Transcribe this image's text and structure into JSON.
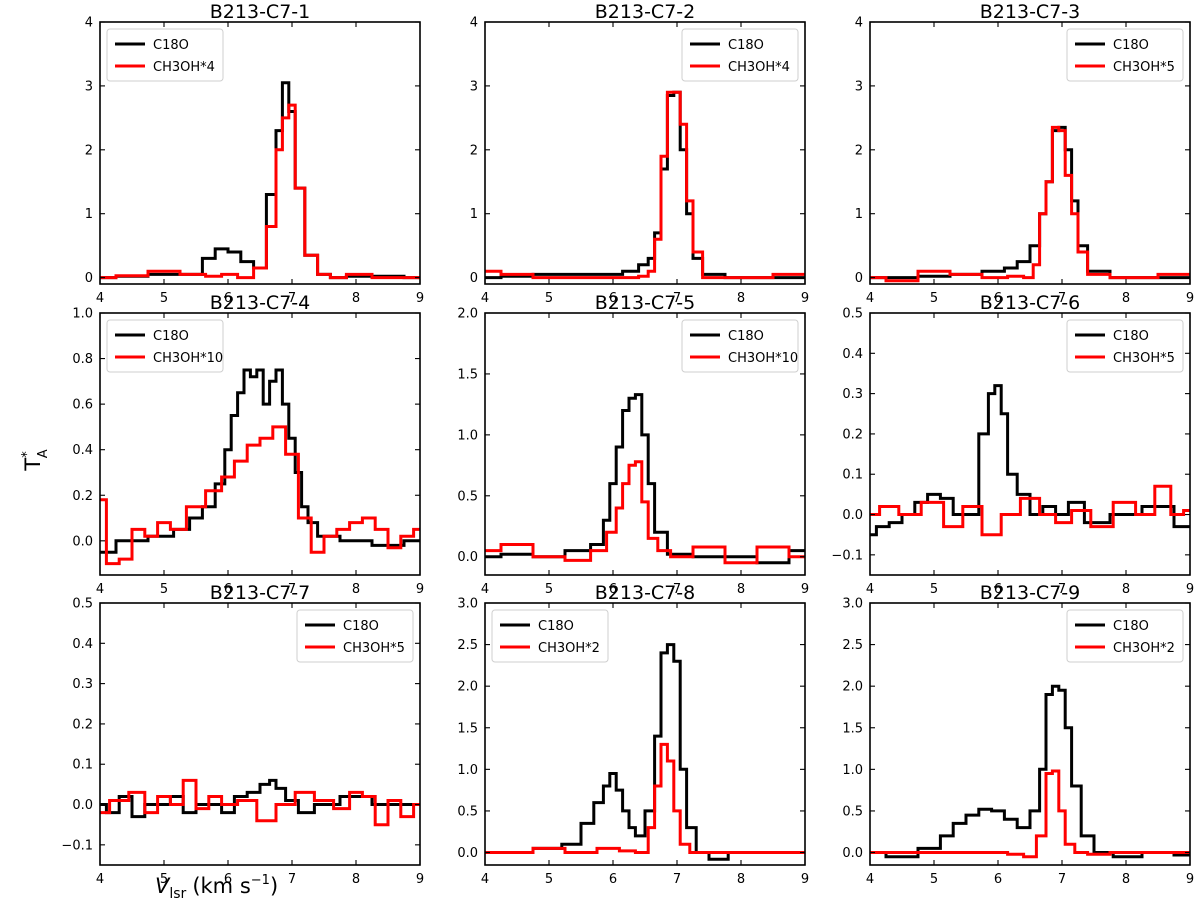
{
  "figure": {
    "ylabel_main": "T",
    "ylabel_super": "*",
    "ylabel_sub": "A",
    "xlabel_v": "V",
    "xlabel_sub": "lsr",
    "xlabel_units": "(km s",
    "xlabel_exp": "−1",
    "xlabel_close": ")"
  },
  "colors": {
    "c18o": "#000000",
    "ch3oh": "#ff0000"
  },
  "chart_data": [
    {
      "type": "line",
      "title": "B213-C7-1",
      "xlim": [
        4,
        9
      ],
      "ylim": [
        -0.1,
        4
      ],
      "yticks": [
        "0",
        "1",
        "2",
        "3",
        "4"
      ],
      "xticks": [
        "4",
        "5",
        "6",
        "7",
        "8",
        "9"
      ],
      "legend_loc": "upper-left",
      "series": [
        {
          "name": "C18O",
          "x": [
            4.0,
            4.5,
            5.0,
            5.5,
            5.7,
            5.9,
            6.1,
            6.3,
            6.5,
            6.7,
            6.8,
            6.9,
            7.0,
            7.1,
            7.3,
            7.5,
            7.7,
            8.0,
            8.5,
            9.0
          ],
          "y": [
            0.0,
            0.02,
            0.05,
            0.05,
            0.3,
            0.45,
            0.4,
            0.25,
            0.15,
            1.3,
            2.3,
            3.05,
            2.6,
            1.4,
            0.35,
            0.05,
            0.0,
            0.02,
            0.02,
            0.0
          ]
        },
        {
          "name": "CH3OH*4",
          "x": [
            4.0,
            4.5,
            5.0,
            5.5,
            5.8,
            6.0,
            6.3,
            6.5,
            6.7,
            6.8,
            6.9,
            7.0,
            7.1,
            7.3,
            7.5,
            7.7,
            8.0,
            8.5,
            9.0
          ],
          "y": [
            0.0,
            0.03,
            0.1,
            0.05,
            0.02,
            0.05,
            0.0,
            0.15,
            0.8,
            2.0,
            2.5,
            2.7,
            1.4,
            0.35,
            0.05,
            0.0,
            0.05,
            0.0,
            0.0
          ]
        }
      ]
    },
    {
      "type": "line",
      "title": "B213-C7-2",
      "xlim": [
        4,
        9
      ],
      "ylim": [
        -0.1,
        4
      ],
      "yticks": [
        "0",
        "1",
        "2",
        "3",
        "4"
      ],
      "xticks": [
        "4",
        "5",
        "6",
        "7",
        "8",
        "9"
      ],
      "legend_loc": "upper-right",
      "series": [
        {
          "name": "C18O",
          "x": [
            4.0,
            4.5,
            5.0,
            5.5,
            6.0,
            6.3,
            6.5,
            6.6,
            6.7,
            6.8,
            6.9,
            7.0,
            7.1,
            7.2,
            7.3,
            7.5,
            8.0,
            9.0
          ],
          "y": [
            0.0,
            0.02,
            0.05,
            0.05,
            0.05,
            0.1,
            0.2,
            0.3,
            0.7,
            1.7,
            2.85,
            2.9,
            2.0,
            1.0,
            0.3,
            0.05,
            0.0,
            0.0
          ]
        },
        {
          "name": "CH3OH*4",
          "x": [
            4.0,
            4.5,
            5.0,
            5.5,
            6.0,
            6.3,
            6.5,
            6.6,
            6.7,
            6.8,
            6.9,
            7.0,
            7.1,
            7.2,
            7.3,
            7.5,
            8.0,
            9.0
          ],
          "y": [
            0.1,
            0.05,
            0.0,
            0.0,
            0.0,
            0.0,
            0.02,
            0.1,
            0.6,
            1.9,
            2.9,
            2.9,
            2.4,
            1.2,
            0.4,
            0.0,
            0.0,
            0.05
          ]
        }
      ]
    },
    {
      "type": "line",
      "title": "B213-C7-3",
      "xlim": [
        4,
        9
      ],
      "ylim": [
        -0.1,
        4
      ],
      "yticks": [
        "0",
        "1",
        "2",
        "3",
        "4"
      ],
      "xticks": [
        "4",
        "5",
        "6",
        "7",
        "8",
        "9"
      ],
      "legend_loc": "upper-right",
      "series": [
        {
          "name": "C18O",
          "x": [
            4.0,
            4.5,
            5.0,
            5.5,
            6.0,
            6.2,
            6.4,
            6.6,
            6.7,
            6.8,
            6.9,
            7.0,
            7.1,
            7.2,
            7.3,
            7.5,
            8.0,
            9.0
          ],
          "y": [
            0.0,
            0.0,
            0.02,
            0.05,
            0.1,
            0.15,
            0.25,
            0.5,
            1.0,
            1.5,
            2.3,
            2.35,
            2.0,
            1.2,
            0.5,
            0.1,
            0.0,
            0.0
          ]
        },
        {
          "name": "CH3OH*5",
          "x": [
            4.0,
            4.5,
            5.0,
            5.5,
            6.0,
            6.3,
            6.5,
            6.6,
            6.7,
            6.8,
            6.9,
            7.0,
            7.1,
            7.2,
            7.3,
            7.5,
            8.0,
            9.0
          ],
          "y": [
            0.0,
            -0.05,
            0.1,
            0.05,
            0.0,
            0.02,
            0.0,
            0.2,
            1.0,
            1.5,
            2.35,
            2.3,
            1.6,
            1.0,
            0.4,
            0.05,
            0.0,
            0.05
          ]
        }
      ]
    },
    {
      "type": "line",
      "title": "B213-C7-4",
      "xlim": [
        4,
        9
      ],
      "ylim": [
        -0.15,
        1.0
      ],
      "yticks": [
        "0.0",
        "0.2",
        "0.4",
        "0.6",
        "0.8",
        "1.0"
      ],
      "xticks": [
        "4",
        "5",
        "6",
        "7",
        "8",
        "9"
      ],
      "legend_loc": "upper-left",
      "series": [
        {
          "name": "C18O",
          "x": [
            4.0,
            4.5,
            5.0,
            5.3,
            5.5,
            5.7,
            5.9,
            6.0,
            6.1,
            6.2,
            6.3,
            6.4,
            6.5,
            6.6,
            6.7,
            6.8,
            6.9,
            7.0,
            7.1,
            7.2,
            7.3,
            7.5,
            8.0,
            8.5,
            9.0
          ],
          "y": [
            -0.05,
            0.0,
            0.02,
            0.05,
            0.1,
            0.15,
            0.25,
            0.4,
            0.55,
            0.65,
            0.75,
            0.72,
            0.75,
            0.6,
            0.7,
            0.75,
            0.6,
            0.45,
            0.3,
            0.15,
            0.08,
            0.02,
            0.0,
            -0.02,
            0.0
          ]
        },
        {
          "name": "CH3OH*10",
          "x": [
            4.0,
            4.2,
            4.4,
            4.6,
            4.8,
            5.0,
            5.2,
            5.5,
            5.8,
            6.0,
            6.2,
            6.4,
            6.6,
            6.8,
            7.0,
            7.2,
            7.4,
            7.6,
            7.8,
            8.0,
            8.2,
            8.4,
            8.6,
            8.8,
            9.0
          ],
          "y": [
            0.18,
            -0.1,
            -0.08,
            0.05,
            0.02,
            0.08,
            0.05,
            0.15,
            0.22,
            0.28,
            0.35,
            0.42,
            0.45,
            0.5,
            0.38,
            0.1,
            -0.05,
            0.02,
            0.05,
            0.08,
            0.1,
            0.05,
            -0.03,
            0.02,
            0.05
          ]
        }
      ]
    },
    {
      "type": "line",
      "title": "B213-C7-5",
      "xlim": [
        4,
        9
      ],
      "ylim": [
        -0.15,
        2.0
      ],
      "yticks": [
        "0.0",
        "0.5",
        "1.0",
        "1.5",
        "2.0"
      ],
      "xticks": [
        "4",
        "5",
        "6",
        "7",
        "8",
        "9"
      ],
      "legend_loc": "upper-right",
      "series": [
        {
          "name": "C18O",
          "x": [
            4.0,
            4.5,
            5.0,
            5.5,
            5.8,
            5.9,
            6.0,
            6.1,
            6.2,
            6.3,
            6.4,
            6.5,
            6.6,
            6.7,
            7.0,
            7.5,
            8.0,
            8.5,
            9.0
          ],
          "y": [
            0.0,
            0.02,
            0.0,
            0.05,
            0.1,
            0.3,
            0.6,
            0.9,
            1.2,
            1.3,
            1.33,
            1.0,
            0.6,
            0.2,
            0.02,
            0.0,
            0.0,
            -0.05,
            0.05
          ]
        },
        {
          "name": "CH3OH*10",
          "x": [
            4.0,
            4.5,
            5.0,
            5.5,
            5.8,
            6.0,
            6.1,
            6.2,
            6.3,
            6.4,
            6.5,
            6.6,
            6.8,
            7.0,
            7.5,
            8.0,
            8.5,
            9.0
          ],
          "y": [
            0.05,
            0.1,
            0.0,
            -0.03,
            0.05,
            0.2,
            0.4,
            0.6,
            0.75,
            0.78,
            0.45,
            0.15,
            0.05,
            0.0,
            0.08,
            -0.05,
            0.08,
            0.0
          ]
        }
      ]
    },
    {
      "type": "line",
      "title": "B213-C7-6",
      "xlim": [
        4,
        9
      ],
      "ylim": [
        -0.15,
        0.5
      ],
      "yticks": [
        "−0.1",
        "0.0",
        "0.1",
        "0.2",
        "0.3",
        "0.4",
        "0.5"
      ],
      "xticks": [
        "4",
        "5",
        "6",
        "7",
        "8",
        "9"
      ],
      "legend_loc": "upper-right",
      "series": [
        {
          "name": "C18O",
          "x": [
            4.0,
            4.2,
            4.4,
            4.6,
            4.8,
            5.0,
            5.2,
            5.4,
            5.6,
            5.8,
            5.9,
            6.0,
            6.1,
            6.2,
            6.4,
            6.6,
            6.8,
            7.0,
            7.2,
            7.5,
            8.0,
            8.5,
            9.0
          ],
          "y": [
            -0.05,
            -0.03,
            -0.02,
            0.0,
            0.03,
            0.05,
            0.04,
            0.0,
            0.0,
            0.2,
            0.3,
            0.32,
            0.25,
            0.1,
            0.05,
            0.0,
            0.02,
            0.0,
            0.03,
            -0.02,
            0.0,
            0.02,
            -0.03
          ]
        },
        {
          "name": "CH3OH*5",
          "x": [
            4.0,
            4.3,
            4.6,
            5.0,
            5.3,
            5.6,
            5.9,
            6.2,
            6.5,
            6.8,
            7.0,
            7.3,
            7.6,
            8.0,
            8.3,
            8.6,
            8.8,
            9.0
          ],
          "y": [
            0.0,
            0.02,
            0.0,
            0.03,
            -0.03,
            0.02,
            -0.05,
            0.0,
            0.04,
            0.0,
            -0.02,
            0.01,
            -0.03,
            0.03,
            0.0,
            0.07,
            0.0,
            0.01
          ]
        }
      ]
    },
    {
      "type": "line",
      "title": "B213-C7-7",
      "xlim": [
        4,
        9
      ],
      "ylim": [
        -0.15,
        0.5
      ],
      "yticks": [
        "−0.1",
        "0.0",
        "0.1",
        "0.2",
        "0.3",
        "0.4",
        "0.5"
      ],
      "xticks": [
        "4",
        "5",
        "6",
        "7",
        "8",
        "9"
      ],
      "legend_loc": "upper-right",
      "series": [
        {
          "name": "C18O",
          "x": [
            4.0,
            4.2,
            4.4,
            4.6,
            4.8,
            5.0,
            5.2,
            5.4,
            5.6,
            5.8,
            6.0,
            6.2,
            6.4,
            6.6,
            6.7,
            6.8,
            7.0,
            7.2,
            7.5,
            8.0,
            8.5,
            9.0
          ],
          "y": [
            0.0,
            -0.02,
            0.02,
            -0.03,
            0.0,
            0.0,
            0.02,
            -0.02,
            0.0,
            0.0,
            -0.02,
            0.02,
            0.03,
            0.05,
            0.06,
            0.04,
            0.01,
            -0.02,
            0.0,
            0.02,
            0.0,
            0.0
          ]
        },
        {
          "name": "CH3OH*5",
          "x": [
            4.0,
            4.3,
            4.6,
            4.8,
            5.0,
            5.2,
            5.4,
            5.6,
            5.8,
            6.0,
            6.3,
            6.6,
            6.9,
            7.2,
            7.5,
            7.8,
            8.0,
            8.2,
            8.4,
            8.6,
            8.8,
            9.0
          ],
          "y": [
            -0.02,
            0.01,
            0.03,
            -0.02,
            0.02,
            0.0,
            0.06,
            -0.01,
            0.02,
            0.0,
            0.01,
            -0.04,
            0.0,
            0.03,
            0.01,
            -0.01,
            0.03,
            0.02,
            -0.05,
            0.01,
            -0.03,
            0.0
          ]
        }
      ]
    },
    {
      "type": "line",
      "title": "B213-C7-8",
      "xlim": [
        4,
        9
      ],
      "ylim": [
        -0.15,
        3.0
      ],
      "yticks": [
        "0.0",
        "0.5",
        "1.0",
        "1.5",
        "2.0",
        "2.5",
        "3.0"
      ],
      "xticks": [
        "4",
        "5",
        "6",
        "7",
        "8",
        "9"
      ],
      "legend_loc": "upper-left",
      "series": [
        {
          "name": "C18O",
          "x": [
            4.0,
            4.5,
            5.0,
            5.4,
            5.6,
            5.8,
            5.9,
            6.0,
            6.1,
            6.2,
            6.3,
            6.4,
            6.6,
            6.7,
            6.8,
            6.9,
            7.0,
            7.1,
            7.2,
            7.4,
            7.6,
            8.0,
            8.5,
            9.0
          ],
          "y": [
            0.0,
            0.0,
            0.05,
            0.1,
            0.35,
            0.6,
            0.8,
            0.95,
            0.75,
            0.5,
            0.3,
            0.2,
            0.5,
            1.4,
            2.4,
            2.5,
            2.3,
            1.0,
            0.3,
            0.0,
            -0.08,
            0.0,
            0.0,
            0.0
          ]
        },
        {
          "name": "CH3OH*2",
          "x": [
            4.0,
            4.5,
            5.0,
            5.5,
            6.0,
            6.2,
            6.5,
            6.6,
            6.7,
            6.8,
            6.9,
            7.0,
            7.1,
            7.3,
            7.5,
            8.0,
            8.5,
            9.0
          ],
          "y": [
            0.0,
            0.0,
            0.05,
            0.0,
            0.05,
            0.02,
            0.0,
            0.3,
            0.8,
            1.3,
            1.1,
            0.5,
            0.1,
            0.0,
            0.0,
            0.0,
            0.0,
            0.0
          ]
        }
      ]
    },
    {
      "type": "line",
      "title": "B213-C7-9",
      "xlim": [
        4,
        9
      ],
      "ylim": [
        -0.15,
        3.0
      ],
      "yticks": [
        "0.0",
        "0.5",
        "1.0",
        "1.5",
        "2.0",
        "2.5",
        "3.0"
      ],
      "xticks": [
        "4",
        "5",
        "6",
        "7",
        "8",
        "9"
      ],
      "legend_loc": "upper-right",
      "series": [
        {
          "name": "C18O",
          "x": [
            4.0,
            4.5,
            5.0,
            5.2,
            5.4,
            5.6,
            5.8,
            6.0,
            6.2,
            6.4,
            6.6,
            6.7,
            6.8,
            6.9,
            7.0,
            7.1,
            7.2,
            7.4,
            7.6,
            8.0,
            8.5,
            9.0
          ],
          "y": [
            0.0,
            -0.05,
            0.05,
            0.2,
            0.35,
            0.45,
            0.52,
            0.5,
            0.4,
            0.3,
            0.5,
            1.0,
            1.9,
            2.0,
            1.95,
            1.5,
            0.8,
            0.2,
            0.0,
            -0.05,
            0.0,
            -0.03
          ]
        },
        {
          "name": "CH3OH*2",
          "x": [
            4.0,
            4.5,
            5.0,
            5.5,
            6.0,
            6.3,
            6.5,
            6.7,
            6.8,
            6.9,
            7.0,
            7.1,
            7.3,
            7.5,
            8.0,
            8.5,
            9.0
          ],
          "y": [
            0.0,
            0.0,
            0.0,
            0.0,
            0.0,
            -0.02,
            -0.05,
            0.2,
            0.95,
            0.98,
            0.5,
            0.1,
            0.0,
            -0.02,
            0.0,
            0.0,
            0.0
          ]
        }
      ]
    }
  ]
}
